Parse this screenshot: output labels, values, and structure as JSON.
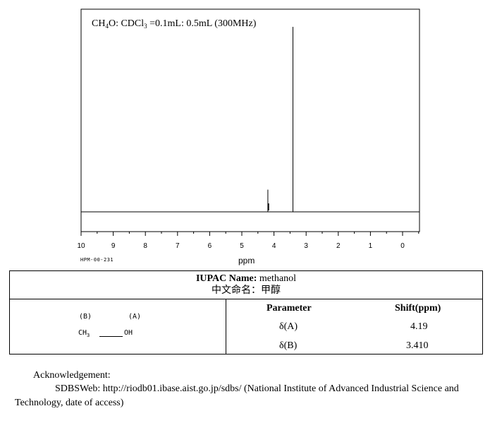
{
  "chart_data": {
    "type": "nmr_spectrum",
    "title": "CH4O: CDCl3 =0.1mL: 0.5mL (300MHz)",
    "xlabel": "ppm",
    "x_range_ppm": [
      10,
      -0.5
    ],
    "tick_labels": [
      10,
      9,
      8,
      7,
      6,
      5,
      4,
      3,
      2,
      1,
      0
    ],
    "peaks": [
      {
        "ppm": 4.19,
        "relative_intensity": 0.12
      },
      {
        "ppm": 3.41,
        "relative_intensity": 1.0
      }
    ]
  },
  "spectrum_code": "HPM-00-231",
  "iupac": {
    "label": "IUPAC Name:",
    "value": "methanol"
  },
  "chinese_name": {
    "label": "中文命名：",
    "value": "甲醇"
  },
  "structure": {
    "label_b": "(B)",
    "label_a": "(A)",
    "group_b": "CH3",
    "group_a": "OH"
  },
  "table": {
    "headers": [
      "Parameter",
      "Shift(ppm)"
    ],
    "rows": [
      {
        "param": "δ(A)",
        "shift": "4.19"
      },
      {
        "param": "δ(B)",
        "shift": "3.410"
      }
    ]
  },
  "acknowledgement": {
    "heading": "Acknowledgement:",
    "line1": "SDBSWeb: http://riodb01.ibase.aist.go.jp/sdbs/ (National Institute of Advanced Industrial Science and",
    "line2": "Technology, date of access)"
  }
}
